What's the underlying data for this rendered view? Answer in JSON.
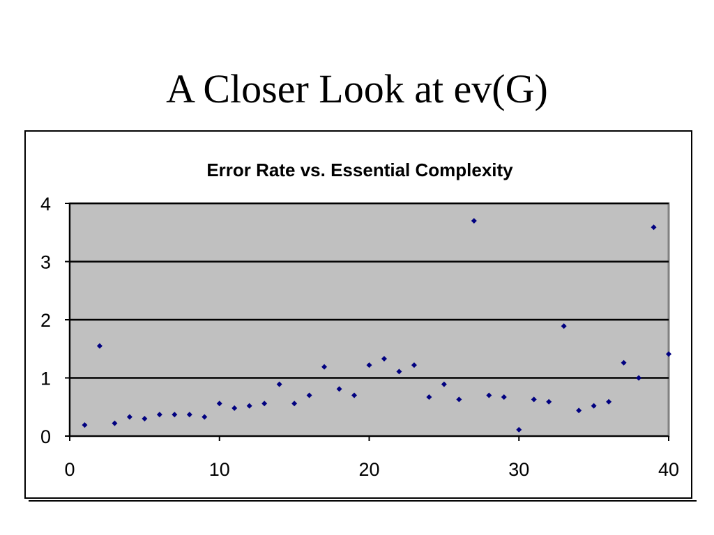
{
  "slide": {
    "title": "A Closer Look at ev(G)"
  },
  "colors": {
    "plot_background": "#c0c0c0",
    "gridline": "#000000",
    "marker": "#000080"
  },
  "chart_data": {
    "type": "scatter",
    "title": "Error Rate vs. Essential Complexity",
    "xlabel": "",
    "ylabel": "",
    "xlim": [
      0,
      40
    ],
    "ylim": [
      0,
      4
    ],
    "xticks": [
      0,
      10,
      20,
      30,
      40
    ],
    "yticks": [
      0,
      1,
      2,
      3,
      4
    ],
    "grid": "horizontal",
    "legend": "none",
    "marker": "diamond",
    "points": [
      {
        "x": 1,
        "y": 0.19
      },
      {
        "x": 2,
        "y": 1.55
      },
      {
        "x": 3,
        "y": 0.22
      },
      {
        "x": 4,
        "y": 0.33
      },
      {
        "x": 5,
        "y": 0.3
      },
      {
        "x": 6,
        "y": 0.37
      },
      {
        "x": 7,
        "y": 0.37
      },
      {
        "x": 8,
        "y": 0.37
      },
      {
        "x": 9,
        "y": 0.33
      },
      {
        "x": 10,
        "y": 0.56
      },
      {
        "x": 11,
        "y": 0.48
      },
      {
        "x": 12,
        "y": 0.52
      },
      {
        "x": 13,
        "y": 0.56
      },
      {
        "x": 14,
        "y": 0.89
      },
      {
        "x": 15,
        "y": 0.56
      },
      {
        "x": 16,
        "y": 0.7
      },
      {
        "x": 17,
        "y": 1.19
      },
      {
        "x": 18,
        "y": 0.81
      },
      {
        "x": 19,
        "y": 0.7
      },
      {
        "x": 20,
        "y": 1.22
      },
      {
        "x": 21,
        "y": 1.33
      },
      {
        "x": 22,
        "y": 1.11
      },
      {
        "x": 23,
        "y": 1.22
      },
      {
        "x": 24,
        "y": 0.67
      },
      {
        "x": 25,
        "y": 0.89
      },
      {
        "x": 26,
        "y": 0.63
      },
      {
        "x": 27,
        "y": 3.7
      },
      {
        "x": 28,
        "y": 0.7
      },
      {
        "x": 29,
        "y": 0.67
      },
      {
        "x": 30,
        "y": 0.11
      },
      {
        "x": 31,
        "y": 0.63
      },
      {
        "x": 32,
        "y": 0.59
      },
      {
        "x": 33,
        "y": 1.89
      },
      {
        "x": 34,
        "y": 0.44
      },
      {
        "x": 35,
        "y": 0.52
      },
      {
        "x": 36,
        "y": 0.59
      },
      {
        "x": 37,
        "y": 1.26
      },
      {
        "x": 38,
        "y": 1.0
      },
      {
        "x": 39,
        "y": 3.59
      },
      {
        "x": 40,
        "y": 1.41
      }
    ]
  }
}
